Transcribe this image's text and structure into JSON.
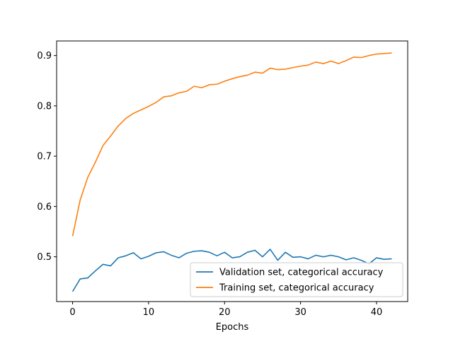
{
  "chart_data": {
    "type": "line",
    "title": "",
    "xlabel": "Epochs",
    "ylabel": "",
    "xlim": [
      -2.1,
      44.1
    ],
    "ylim": [
      0.411,
      0.929
    ],
    "xticks": [
      0,
      10,
      20,
      30,
      40
    ],
    "yticks": [
      0.5,
      0.6,
      0.7,
      0.8,
      0.9
    ],
    "xtick_labels": [
      "0",
      "10",
      "20",
      "30",
      "40"
    ],
    "ytick_labels": [
      "0.5",
      "0.6",
      "0.7",
      "0.8",
      "0.9"
    ],
    "grid": false,
    "legend_position": "lower-right",
    "x": [
      0,
      1,
      2,
      3,
      4,
      5,
      6,
      7,
      8,
      9,
      10,
      11,
      12,
      13,
      14,
      15,
      16,
      17,
      18,
      19,
      20,
      21,
      22,
      23,
      24,
      25,
      26,
      27,
      28,
      29,
      30,
      31,
      32,
      33,
      34,
      35,
      36,
      37,
      38,
      39,
      40,
      41,
      42
    ],
    "series": [
      {
        "name": "Validation set, categorical accuracy",
        "color": "#1f77b4",
        "values": [
          0.431,
          0.456,
          0.458,
          0.472,
          0.485,
          0.482,
          0.498,
          0.502,
          0.508,
          0.496,
          0.501,
          0.508,
          0.51,
          0.503,
          0.498,
          0.507,
          0.511,
          0.512,
          0.509,
          0.502,
          0.509,
          0.498,
          0.5,
          0.509,
          0.513,
          0.5,
          0.515,
          0.493,
          0.509,
          0.499,
          0.5,
          0.496,
          0.503,
          0.5,
          0.503,
          0.5,
          0.494,
          0.498,
          0.493,
          0.486,
          0.498,
          0.495,
          0.496
        ]
      },
      {
        "name": "Training set, categorical accuracy",
        "color": "#ff7f0e",
        "values": [
          0.541,
          0.613,
          0.658,
          0.688,
          0.721,
          0.74,
          0.76,
          0.775,
          0.785,
          0.792,
          0.799,
          0.807,
          0.818,
          0.82,
          0.826,
          0.829,
          0.839,
          0.836,
          0.842,
          0.843,
          0.849,
          0.854,
          0.858,
          0.861,
          0.867,
          0.865,
          0.875,
          0.872,
          0.873,
          0.876,
          0.879,
          0.881,
          0.887,
          0.884,
          0.889,
          0.884,
          0.89,
          0.897,
          0.896,
          0.9,
          0.903,
          0.904,
          0.905
        ]
      }
    ]
  }
}
